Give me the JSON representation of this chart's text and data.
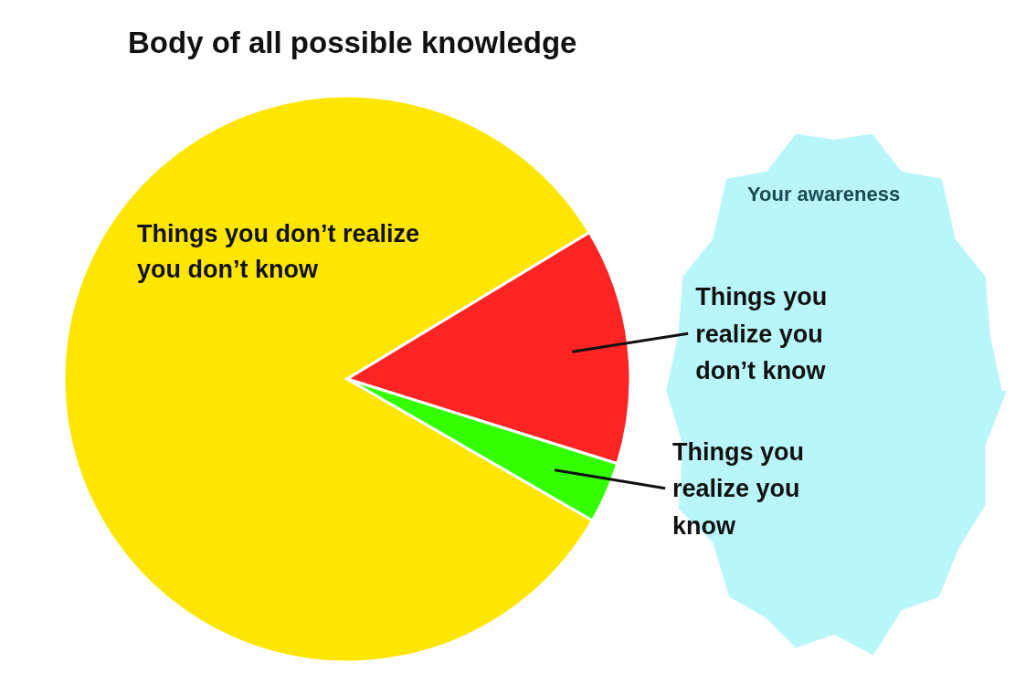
{
  "chart_data": {
    "type": "pie",
    "title": "Body of all possible knowledge",
    "categories": [
      "Things you don’t realize you don’t know",
      "Things you realize you don’t know",
      "Things you realize you know"
    ],
    "values": [
      83,
      13.5,
      3.5
    ],
    "colors": [
      "#ffe600",
      "#ff2424",
      "#33ff00"
    ],
    "annotations": [
      "Your awareness"
    ]
  }
}
